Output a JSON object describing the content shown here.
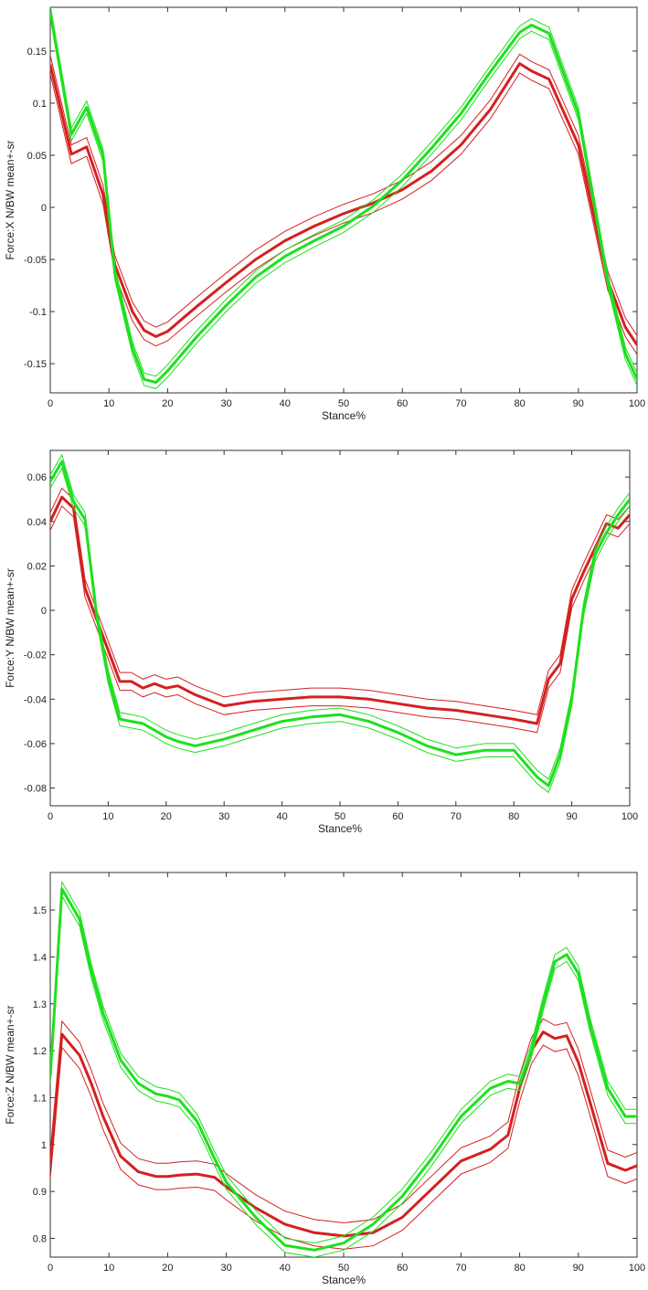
{
  "chart_data": [
    {
      "type": "line",
      "title": "",
      "xlabel": "Stance%",
      "ylabel": "Force:X N/BW mean+-sr",
      "xlim": [
        0,
        100
      ],
      "ylim": [
        -0.178,
        0.192
      ],
      "xticks": [
        "0",
        "10",
        "20",
        "30",
        "40",
        "50",
        "60",
        "70",
        "80",
        "90",
        "100"
      ],
      "yticks": [
        "-0.15",
        "-0.1",
        "-0.05",
        "0",
        "0.05",
        "0.1",
        "0.15"
      ],
      "x": [
        0,
        3.6,
        6.2,
        9,
        11,
        14,
        16,
        18,
        20,
        25,
        30,
        35,
        40,
        45,
        50,
        55,
        60,
        65,
        70,
        75,
        80,
        82,
        85,
        90,
        95,
        98,
        100
      ],
      "series": [
        {
          "name": "red-mean",
          "color": "#d42020",
          "values": [
            0.137,
            0.051,
            0.058,
            0.012,
            -0.055,
            -0.1,
            -0.118,
            -0.124,
            -0.119,
            -0.095,
            -0.072,
            -0.05,
            -0.032,
            -0.018,
            -0.006,
            0.004,
            0.017,
            0.035,
            0.06,
            0.094,
            0.138,
            0.131,
            0.123,
            0.06,
            -0.07,
            -0.115,
            -0.132
          ],
          "band": 0.009
        },
        {
          "name": "green-mean",
          "color": "#1ee01e",
          "values": [
            0.188,
            0.07,
            0.096,
            0.05,
            -0.063,
            -0.135,
            -0.165,
            -0.168,
            -0.157,
            -0.124,
            -0.094,
            -0.067,
            -0.047,
            -0.032,
            -0.018,
            0.001,
            0.026,
            0.057,
            0.09,
            0.13,
            0.168,
            0.175,
            0.167,
            0.09,
            -0.07,
            -0.14,
            -0.165
          ],
          "band": 0.006
        }
      ]
    },
    {
      "type": "line",
      "title": "",
      "xlabel": "Stance%",
      "ylabel": "Force:Y N/BW mean+-sr",
      "xlim": [
        0,
        100
      ],
      "ylim": [
        -0.088,
        0.072
      ],
      "xticks": [
        "0",
        "10",
        "20",
        "30",
        "40",
        "50",
        "60",
        "70",
        "80",
        "90",
        "100"
      ],
      "yticks": [
        "-0.08",
        "-0.06",
        "-0.04",
        "-0.02",
        "0",
        "0.02",
        "0.04",
        "0.06"
      ],
      "x": [
        0,
        2,
        4,
        6,
        8,
        10,
        12,
        14,
        16,
        18,
        20,
        22,
        25,
        30,
        35,
        40,
        45,
        50,
        55,
        60,
        65,
        70,
        75,
        80,
        84,
        86,
        88,
        90,
        92,
        94,
        96,
        98,
        100
      ],
      "series": [
        {
          "name": "red-mean",
          "color": "#d42020",
          "values": [
            0.04,
            0.051,
            0.046,
            0.01,
            -0.004,
            -0.018,
            -0.032,
            -0.032,
            -0.035,
            -0.033,
            -0.035,
            -0.034,
            -0.038,
            -0.043,
            -0.041,
            -0.04,
            -0.039,
            -0.039,
            -0.04,
            -0.042,
            -0.044,
            -0.045,
            -0.047,
            -0.049,
            -0.051,
            -0.031,
            -0.024,
            0.005,
            0.017,
            0.028,
            0.039,
            0.037,
            0.043
          ],
          "band": 0.004
        },
        {
          "name": "green-mean",
          "color": "#1ee01e",
          "values": [
            0.058,
            0.067,
            0.049,
            0.041,
            -0.002,
            -0.03,
            -0.049,
            -0.05,
            -0.051,
            -0.054,
            -0.057,
            -0.059,
            -0.061,
            -0.058,
            -0.054,
            -0.05,
            -0.048,
            -0.047,
            -0.05,
            -0.055,
            -0.061,
            -0.065,
            -0.063,
            -0.063,
            -0.075,
            -0.079,
            -0.065,
            -0.04,
            0.0,
            0.025,
            0.035,
            0.043,
            0.05
          ],
          "band": 0.003
        }
      ]
    },
    {
      "type": "line",
      "title": "",
      "xlabel": "Stance%",
      "ylabel": "Force:Z N/BW mean+-sr",
      "xlim": [
        0,
        100
      ],
      "ylim": [
        0.76,
        1.58
      ],
      "xticks": [
        "0",
        "10",
        "20",
        "30",
        "40",
        "50",
        "60",
        "70",
        "80",
        "90",
        "100"
      ],
      "yticks": [
        "0.8",
        "0.9",
        "1",
        "1.1",
        "1.2",
        "1.3",
        "1.4",
        "1.5"
      ],
      "x": [
        0,
        2,
        5,
        7,
        9,
        12,
        15,
        18,
        20,
        22,
        25,
        28,
        30,
        35,
        40,
        45,
        50,
        55,
        60,
        65,
        70,
        75,
        78,
        80,
        82,
        84,
        86,
        88,
        90,
        92,
        95,
        98,
        100
      ],
      "series": [
        {
          "name": "red-mean",
          "color": "#d42020",
          "values": [
            0.955,
            1.235,
            1.19,
            1.13,
            1.06,
            0.975,
            0.942,
            0.932,
            0.932,
            0.935,
            0.937,
            0.93,
            0.91,
            0.865,
            0.83,
            0.812,
            0.805,
            0.812,
            0.845,
            0.905,
            0.965,
            0.99,
            1.02,
            1.12,
            1.2,
            1.24,
            1.226,
            1.232,
            1.175,
            1.09,
            0.96,
            0.945,
            0.955
          ],
          "band": 0.028
        },
        {
          "name": "green-mean",
          "color": "#1ee01e",
          "values": [
            1.145,
            1.545,
            1.48,
            1.37,
            1.28,
            1.18,
            1.13,
            1.108,
            1.103,
            1.095,
            1.05,
            0.97,
            0.92,
            0.845,
            0.785,
            0.775,
            0.79,
            0.83,
            0.89,
            0.97,
            1.06,
            1.12,
            1.135,
            1.13,
            1.2,
            1.3,
            1.39,
            1.405,
            1.365,
            1.255,
            1.12,
            1.06,
            1.06
          ],
          "band": 0.015
        }
      ]
    }
  ]
}
